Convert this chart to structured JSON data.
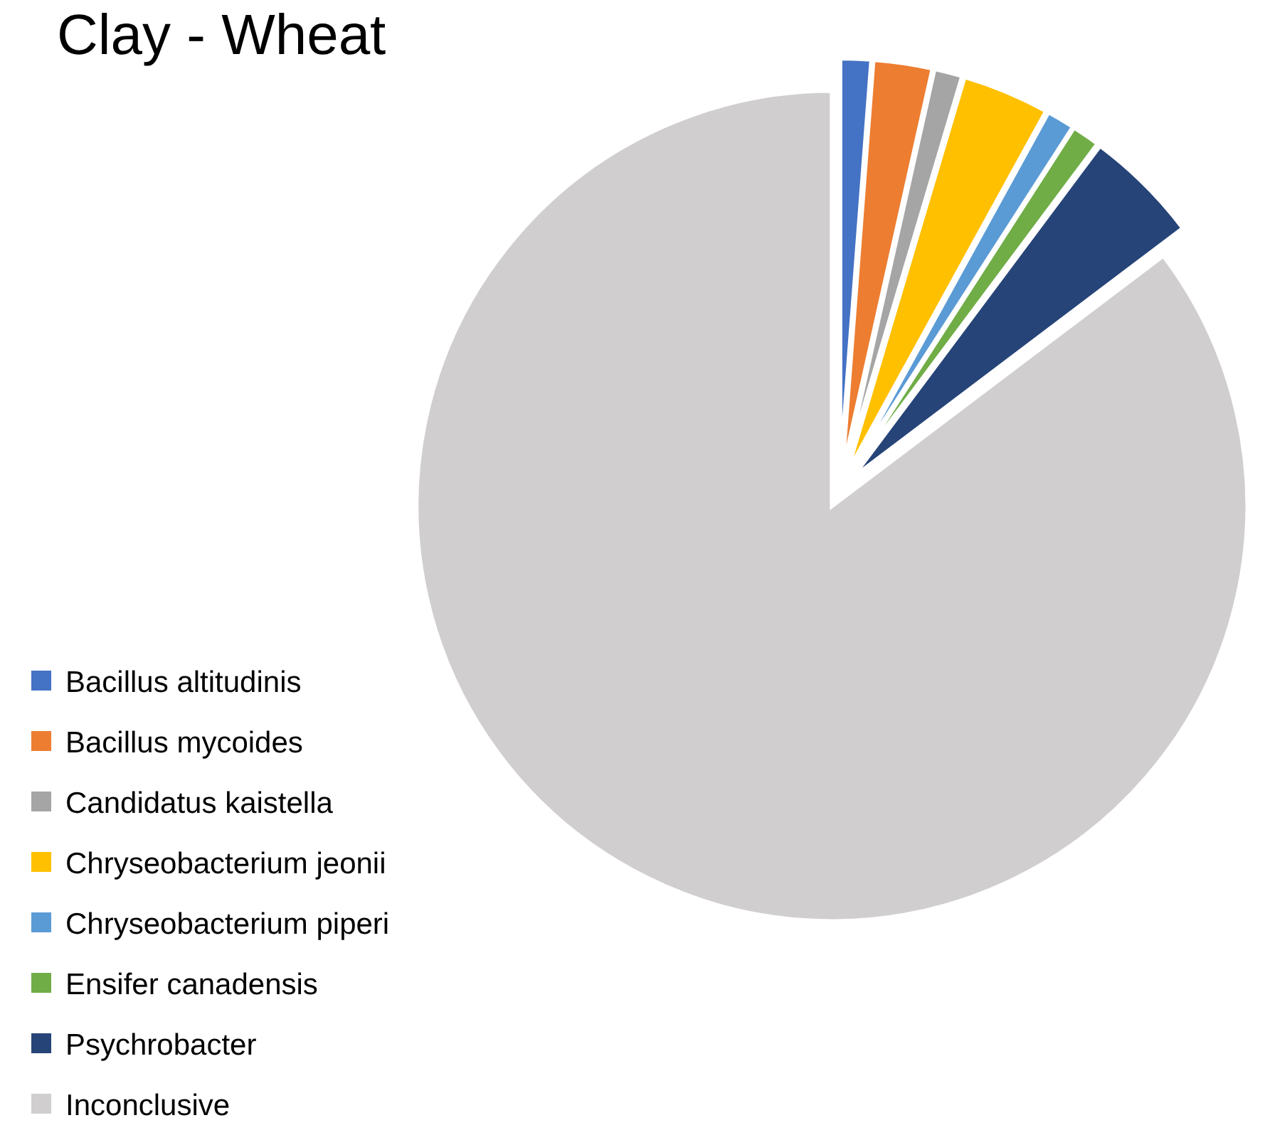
{
  "chart_data": {
    "type": "pie",
    "title": "Clay - Wheat",
    "categories": [
      "Bacillus altitudinis",
      "Bacillus mycoides",
      "Candidatus kaistella",
      "Chryseobacterium jeonii",
      "Chryseobacterium piperi",
      "Ensifer canadensis",
      "Psychrobacter",
      "Inconclusive"
    ],
    "values": [
      1.2,
      2.3,
      1.1,
      3.4,
      1.1,
      1.1,
      4.5,
      85.3
    ],
    "colors": [
      "#4472c4",
      "#ed7d31",
      "#a5a5a5",
      "#ffc000",
      "#5b9bd5",
      "#70ad47",
      "#264478",
      "#d0cece"
    ],
    "legend": "bottom left"
  }
}
